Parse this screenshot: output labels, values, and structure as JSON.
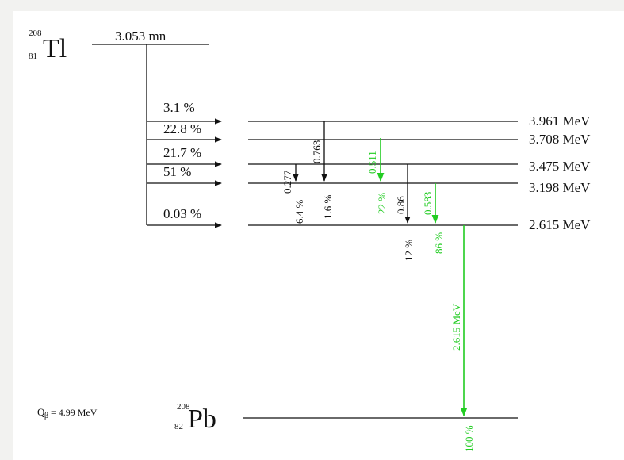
{
  "parent": {
    "mass_number": "208",
    "atomic_number": "81",
    "symbol": "Tl",
    "half_life": "3.053 mn"
  },
  "daughter": {
    "mass_number": "208",
    "atomic_number": "82",
    "symbol": "Pb",
    "q_beta_prefix": "Q",
    "q_beta_sub": "β",
    "q_beta_value": "= 4.99 MeV"
  },
  "levels": [
    {
      "energy": "3.961 MeV"
    },
    {
      "energy": "3.708 MeV"
    },
    {
      "energy": "3.475 MeV"
    },
    {
      "energy": "3.198 MeV"
    },
    {
      "energy": "2.615 MeV"
    }
  ],
  "beta_branches": [
    {
      "percent": "3.1 %"
    },
    {
      "percent": "22.8 %"
    },
    {
      "percent": "21.7 %"
    },
    {
      "percent": "51 %"
    },
    {
      "percent": "0.03 %"
    }
  ],
  "gamma_transitions": [
    {
      "energy_label": "0.277",
      "intensity": "6.4 %",
      "color": "#111111"
    },
    {
      "energy_label": "0.763",
      "intensity": "1.6 %",
      "color": "#111111"
    },
    {
      "energy_label": "0.511",
      "intensity": "22 %",
      "color": "#22cc22"
    },
    {
      "energy_label": "0.86",
      "intensity": "12 %",
      "color": "#111111"
    },
    {
      "energy_label": "0.583",
      "intensity": "86 %",
      "color": "#22cc22"
    },
    {
      "energy_label": "2.615 MeV",
      "intensity": "100 %",
      "color": "#22cc22"
    }
  ]
}
